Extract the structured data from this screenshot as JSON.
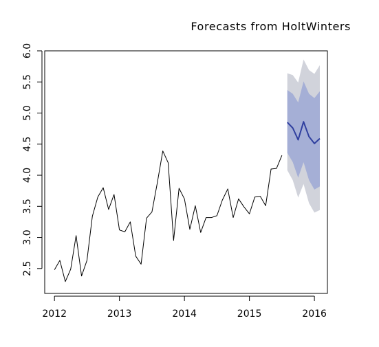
{
  "chart_data": {
    "type": "line",
    "title": "Forecasts from HoltWinters",
    "xlabel": "",
    "ylabel": "",
    "xlim": [
      2011.85,
      2016.2
    ],
    "ylim": [
      2.1,
      6.0
    ],
    "x_ticks": [
      2012,
      2013,
      2014,
      2015,
      2016
    ],
    "x_tick_labels": [
      "2012",
      "2013",
      "2014",
      "2015",
      "2016"
    ],
    "y_ticks": [
      2.5,
      3.0,
      3.5,
      4.0,
      4.5,
      5.0,
      5.5,
      6.0
    ],
    "y_tick_labels": [
      "2.5",
      "3.0",
      "3.5",
      "4.0",
      "4.5",
      "5.0",
      "5.5",
      "6.0"
    ],
    "grid": false,
    "colors": {
      "observed": "#000000",
      "forecast": "#2f3f9f",
      "band_80": "#a5afd6",
      "band_95": "#d1d3db"
    },
    "series": [
      {
        "role": "observed",
        "x": [
          2012.0,
          2012.083,
          2012.167,
          2012.25,
          2012.333,
          2012.417,
          2012.5,
          2012.583,
          2012.667,
          2012.75,
          2012.833,
          2012.917,
          2013.0,
          2013.083,
          2013.167,
          2013.25,
          2013.333,
          2013.417,
          2013.5,
          2013.583,
          2013.667,
          2013.75,
          2013.833,
          2013.917,
          2014.0,
          2014.083,
          2014.167,
          2014.25,
          2014.333,
          2014.417,
          2014.5,
          2014.583,
          2014.667,
          2014.75,
          2014.833,
          2014.917,
          2015.0,
          2015.083,
          2015.167,
          2015.25,
          2015.333,
          2015.417,
          2015.5
        ],
        "values": [
          2.48,
          2.63,
          2.29,
          2.49,
          3.03,
          2.38,
          2.63,
          3.34,
          3.65,
          3.8,
          3.45,
          3.69,
          3.12,
          3.09,
          3.25,
          2.7,
          2.57,
          3.31,
          3.41,
          3.88,
          4.39,
          4.2,
          2.95,
          3.79,
          3.62,
          3.13,
          3.51,
          3.08,
          3.32,
          3.32,
          3.35,
          3.6,
          3.78,
          3.32,
          3.62,
          3.49,
          3.38,
          3.65,
          3.66,
          3.51,
          4.1,
          4.11,
          4.32
        ]
      },
      {
        "role": "forecast",
        "x": [
          2015.583,
          2015.667,
          2015.75,
          2015.833,
          2015.917,
          2016.0,
          2016.083
        ],
        "values": [
          4.85,
          4.76,
          4.57,
          4.86,
          4.62,
          4.51,
          4.59
        ],
        "lower_80": [
          4.36,
          4.21,
          3.96,
          4.21,
          3.92,
          3.77,
          3.82
        ],
        "upper_80": [
          5.37,
          5.31,
          5.17,
          5.51,
          5.31,
          5.24,
          5.35
        ],
        "lower_95": [
          4.08,
          3.92,
          3.64,
          3.86,
          3.55,
          3.4,
          3.44
        ],
        "upper_95": [
          5.64,
          5.61,
          5.49,
          5.86,
          5.69,
          5.63,
          5.77
        ]
      }
    ]
  }
}
